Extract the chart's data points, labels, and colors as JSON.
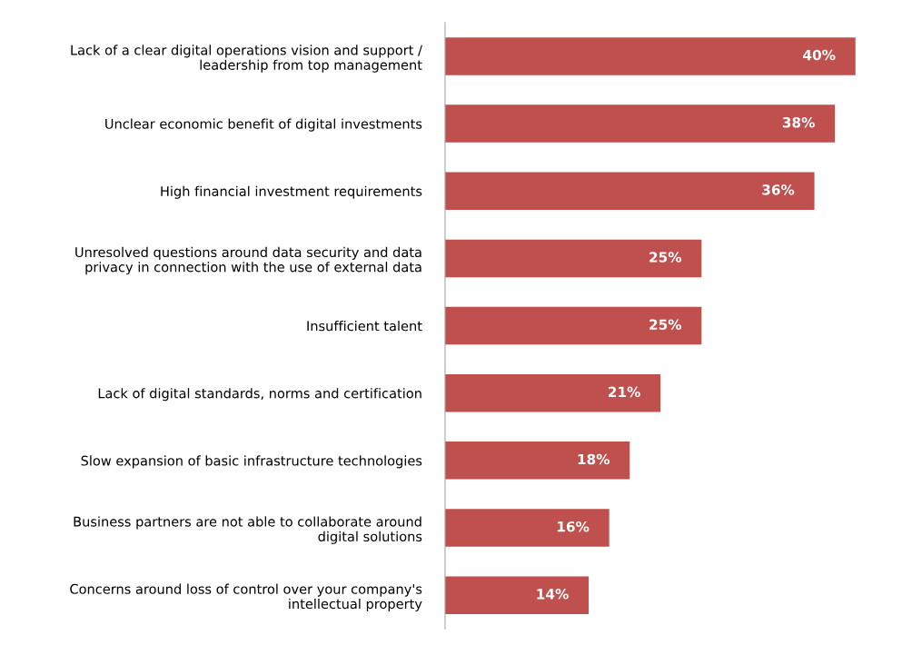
{
  "chart_data": {
    "type": "bar",
    "orientation": "horizontal",
    "categories": [
      "Lack of a clear digital operations vision and support /\nleadership from top management",
      "Unclear economic benefit of digital investments",
      "High financial investment requirements",
      "Unresolved questions around data security and data\nprivacy in connection with the use of external data",
      "Insufficient talent",
      "Lack of digital standards, norms and certification",
      "Slow expansion of basic infrastructure technologies",
      "Business partners are not able to collaborate around\ndigital solutions",
      "Concerns around loss of control over your company's\nintellectual property"
    ],
    "values": [
      40,
      38,
      36,
      25,
      25,
      21,
      18,
      16,
      14
    ],
    "value_labels": [
      "40%",
      "38%",
      "36%",
      "25%",
      "25%",
      "21%",
      "18%",
      "16%",
      "14%"
    ],
    "color": "#c0504d",
    "grid": false,
    "legend": false
  }
}
